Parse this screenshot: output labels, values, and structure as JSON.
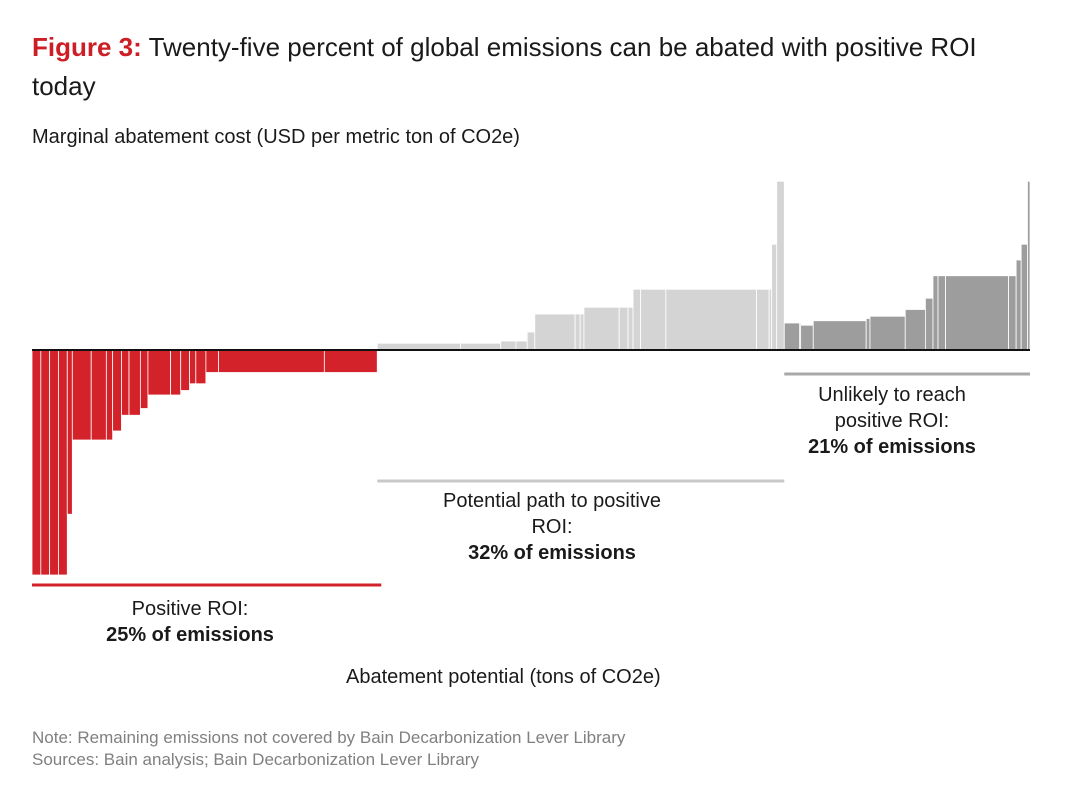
{
  "title": {
    "figure_label": "Figure 3:",
    "text": "Twenty-five percent of global emissions can be abated with positive ROI today"
  },
  "chart_data": {
    "type": "bar",
    "subtype": "marginal-abatement-cost-curve",
    "ylabel": "Marginal abatement cost (USD per metric ton of CO2e)",
    "xlabel": "Abatement potential (tons of CO2e)",
    "x_units": "relative share of abatement potential",
    "y_units": "relative cost (0 = zero cost)",
    "ylim": [
      -100,
      75
    ],
    "grid": false,
    "colors": {
      "positive_roi": "#d3222a",
      "potential_path": "#d4d4d4",
      "unlikely": "#9d9d9d"
    },
    "groups": [
      {
        "name": "Positive ROI:",
        "share": "25% of emissions"
      },
      {
        "name": "Potential path to positive ROI:",
        "share": "32% of emissions"
      },
      {
        "name": "Unlikely to reach positive ROI:",
        "share": "21% of emissions"
      }
    ],
    "bars": [
      {
        "group": 0,
        "width": 0.35,
        "value": -100
      },
      {
        "group": 0,
        "width": 0.35,
        "value": -100
      },
      {
        "group": 0,
        "width": 0.35,
        "value": -100
      },
      {
        "group": 0,
        "width": 0.35,
        "value": -100
      },
      {
        "group": 0,
        "width": 0.2,
        "value": -73
      },
      {
        "group": 0,
        "width": 0.75,
        "value": -40
      },
      {
        "group": 0,
        "width": 0.6,
        "value": -40
      },
      {
        "group": 0,
        "width": 0.25,
        "value": -40
      },
      {
        "group": 0,
        "width": 0.35,
        "value": -36
      },
      {
        "group": 0,
        "width": 0.3,
        "value": -29
      },
      {
        "group": 0,
        "width": 0.45,
        "value": -29
      },
      {
        "group": 0,
        "width": 0.3,
        "value": -26
      },
      {
        "group": 0,
        "width": 0.9,
        "value": -20
      },
      {
        "group": 0,
        "width": 0.4,
        "value": -20
      },
      {
        "group": 0,
        "width": 0.35,
        "value": -18
      },
      {
        "group": 0,
        "width": 0.25,
        "value": -15
      },
      {
        "group": 0,
        "width": 0.4,
        "value": -15
      },
      {
        "group": 0,
        "width": 0.5,
        "value": -10
      },
      {
        "group": 0,
        "width": 4.2,
        "value": -10
      },
      {
        "group": 0,
        "width": 2.1,
        "value": -10
      },
      {
        "group": 1,
        "width": 3.3,
        "value": 3
      },
      {
        "group": 1,
        "width": 1.6,
        "value": 3
      },
      {
        "group": 1,
        "width": 0.6,
        "value": 4
      },
      {
        "group": 1,
        "width": 0.45,
        "value": 4
      },
      {
        "group": 1,
        "width": 0.3,
        "value": 8
      },
      {
        "group": 1,
        "width": 1.6,
        "value": 16
      },
      {
        "group": 1,
        "width": 0.2,
        "value": 16
      },
      {
        "group": 1,
        "width": 0.15,
        "value": 16
      },
      {
        "group": 1,
        "width": 1.4,
        "value": 19
      },
      {
        "group": 1,
        "width": 0.35,
        "value": 19
      },
      {
        "group": 1,
        "width": 0.2,
        "value": 19
      },
      {
        "group": 1,
        "width": 0.3,
        "value": 27
      },
      {
        "group": 1,
        "width": 1.0,
        "value": 27
      },
      {
        "group": 1,
        "width": 3.6,
        "value": 27
      },
      {
        "group": 1,
        "width": 0.5,
        "value": 27
      },
      {
        "group": 1,
        "width": 0.1,
        "value": 27
      },
      {
        "group": 1,
        "width": 0.2,
        "value": 47
      },
      {
        "group": 1,
        "width": 0.3,
        "value": 75
      },
      {
        "group": 2,
        "width": 0.6,
        "value": 12
      },
      {
        "group": 2,
        "width": 0.05,
        "value": 12
      },
      {
        "group": 2,
        "width": 0.5,
        "value": 11
      },
      {
        "group": 2,
        "width": 2.1,
        "value": 13
      },
      {
        "group": 2,
        "width": 0.15,
        "value": 14
      },
      {
        "group": 2,
        "width": 1.4,
        "value": 15
      },
      {
        "group": 2,
        "width": 0.8,
        "value": 18
      },
      {
        "group": 2,
        "width": 0.3,
        "value": 23
      },
      {
        "group": 2,
        "width": 0.2,
        "value": 33
      },
      {
        "group": 2,
        "width": 0.3,
        "value": 33
      },
      {
        "group": 2,
        "width": 2.5,
        "value": 33
      },
      {
        "group": 2,
        "width": 0.3,
        "value": 33
      },
      {
        "group": 2,
        "width": 0.2,
        "value": 40
      },
      {
        "group": 2,
        "width": 0.25,
        "value": 47
      },
      {
        "group": 2,
        "width": 0.1,
        "value": 75
      }
    ]
  },
  "notes": {
    "note": "Note: Remaining emissions not covered by Bain Decarbonization Lever Library",
    "sources": "Sources: Bain analysis; Bain Decarbonization Lever Library"
  }
}
